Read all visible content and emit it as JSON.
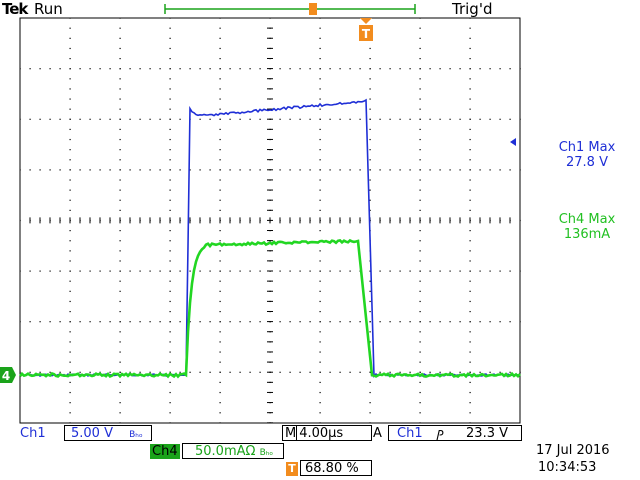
{
  "header": {
    "brand": "Tek",
    "status": "Run",
    "trigger_status": "Trig'd"
  },
  "markers": {
    "ground_ch4": "4",
    "trigger_marker": "T"
  },
  "measurements": {
    "ch1_max_label": "Ch1 Max",
    "ch1_max_value": "27.8 V",
    "ch4_max_label": "Ch4 Max",
    "ch4_max_value": "136mA"
  },
  "footer": {
    "ch1_label": "Ch1",
    "ch1_scale": "5.00 V",
    "ch1_bw": "Bₕₒ",
    "ch4_label": "Ch4",
    "ch4_scale": "50.0mAΩ",
    "ch4_bw": "Bₕₒ",
    "timebase_prefix": "M",
    "timebase": "4.00µs",
    "trigger_mode": "A",
    "trigger_source": "Ch1",
    "trigger_slope": "ⳏ",
    "trigger_level": "23.3 V",
    "trigger_position_badge": "T",
    "trigger_position": "68.80 %",
    "date": "17 Jul  2016",
    "time": "10:34:53"
  },
  "colors": {
    "ch1": "#1f2fd6",
    "ch4": "#22d622",
    "trigger": "#f28c1e",
    "grid": "#000000"
  }
}
